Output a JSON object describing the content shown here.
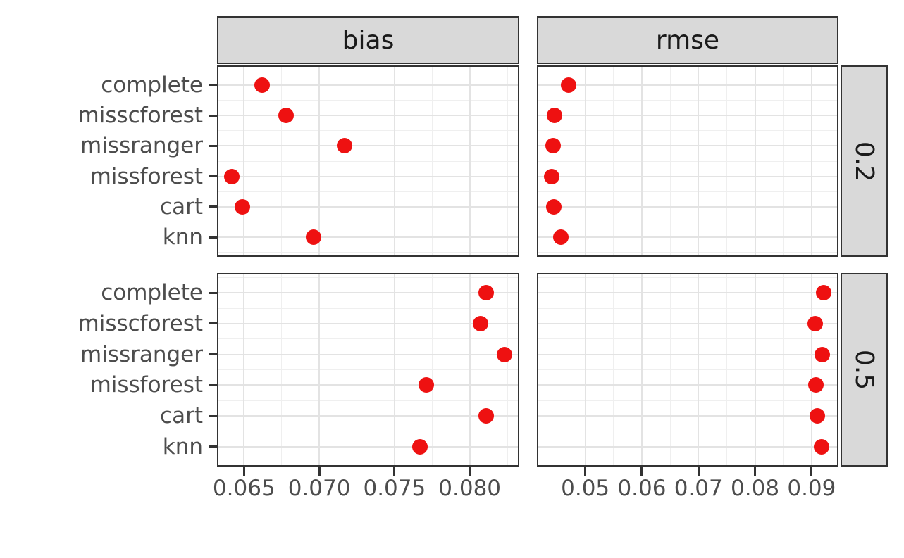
{
  "colors": {
    "background": "#ffffff",
    "point": "#ee1111",
    "strip_fill": "#d9d9d9",
    "strip_text": "#1a1a1a",
    "panel_border": "#333333",
    "axis_text": "#4d4d4d",
    "grid_major": "#e3e3e3",
    "grid_minor": "#efefef",
    "tick": "#333333"
  },
  "chart_data": {
    "type": "scatter",
    "title": "",
    "xlabel": "",
    "ylabel": "",
    "legend": "none",
    "grid": "on",
    "point_color": "#ee1111",
    "categories": [
      "complete",
      "misscforest",
      "missranger",
      "missforest",
      "cart",
      "knn"
    ],
    "facet_cols": [
      {
        "label": "bias"
      },
      {
        "label": "rmse"
      }
    ],
    "facet_rows": [
      {
        "label": "0.2"
      },
      {
        "label": "0.5"
      }
    ],
    "x_axes": [
      {
        "metric": "bias",
        "tick_labels": [
          "0.065",
          "0.070",
          "0.075",
          "0.080"
        ],
        "tick_values": [
          0.065,
          0.07,
          0.075,
          0.08
        ],
        "domain": [
          0.0633,
          0.0832
        ]
      },
      {
        "metric": "rmse",
        "tick_labels": [
          "0.05",
          "0.06",
          "0.07",
          "0.08",
          "0.09"
        ],
        "tick_values": [
          0.05,
          0.06,
          0.07,
          0.08,
          0.09
        ],
        "domain": [
          0.0417,
          0.0945
        ]
      }
    ],
    "panels": [
      {
        "metric": "bias",
        "missing_rate": "0.2",
        "values": [
          0.0662,
          0.0678,
          0.0717,
          0.0642,
          0.0649,
          0.0696
        ]
      },
      {
        "metric": "rmse",
        "missing_rate": "0.2",
        "values": [
          0.047,
          0.0446,
          0.0443,
          0.0441,
          0.0445,
          0.0457
        ]
      },
      {
        "metric": "bias",
        "missing_rate": "0.5",
        "values": [
          0.0811,
          0.0807,
          0.0823,
          0.0771,
          0.0811,
          0.0767
        ]
      },
      {
        "metric": "rmse",
        "missing_rate": "0.5",
        "values": [
          0.0921,
          0.0907,
          0.0919,
          0.0908,
          0.091,
          0.0917
        ]
      }
    ]
  }
}
